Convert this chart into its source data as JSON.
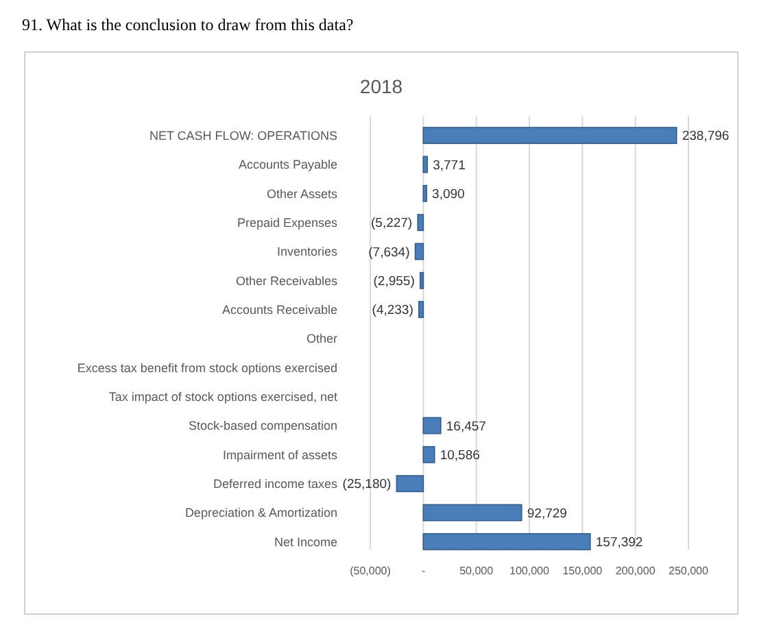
{
  "chart_data": {
    "type": "bar",
    "orientation": "horizontal",
    "title": "2018",
    "annotations": [
      "91. What is the conclusion to draw from this data?"
    ],
    "categories": [
      "NET CASH FLOW: OPERATIONS",
      "Accounts Payable",
      "Other Assets",
      "Prepaid Expenses",
      "Inventories",
      "Other Receivables",
      "Accounts Receivable",
      "Other",
      "Excess tax benefit from stock options exercised",
      "Tax impact of stock options exercised, net",
      "Stock-based compensation",
      "Impairment of assets",
      "Deferred income taxes",
      "Depreciation & Amortization",
      "Net Income"
    ],
    "values": [
      238796,
      3771,
      3090,
      -5227,
      -7634,
      -2955,
      -4233,
      null,
      null,
      null,
      16457,
      10586,
      -25180,
      92729,
      157392
    ],
    "value_labels": [
      "238,796",
      "3,771",
      "3,090",
      "(5,227)",
      "(7,634)",
      "(2,955)",
      "(4,233)",
      null,
      null,
      null,
      "16,457",
      "10,586",
      "(25,180)",
      "92,729",
      "157,392"
    ],
    "color": "#4a7ebb",
    "xlim": [
      -50000,
      250000
    ],
    "xticks": [
      {
        "value": -50000,
        "label": "(50,000)"
      },
      {
        "value": 0,
        "label": "-"
      },
      {
        "value": 50000,
        "label": "50,000"
      },
      {
        "value": 100000,
        "label": "100,000"
      },
      {
        "value": 150000,
        "label": "150,000"
      },
      {
        "value": 200000,
        "label": "200,000"
      },
      {
        "value": 250000,
        "label": "250,000"
      }
    ],
    "grid": "x"
  }
}
